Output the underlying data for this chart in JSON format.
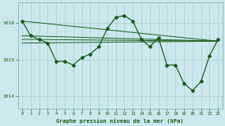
{
  "title": "Graphe pression niveau de la mer (hPa)",
  "background_color": "#cce8ee",
  "grid_color": "#aaccd4",
  "line_color": "#1a5c1a",
  "xlim": [
    -0.5,
    23.5
  ],
  "ylim": [
    1013.65,
    1016.55
  ],
  "yticks": [
    1014,
    1015,
    1016
  ],
  "xticks": [
    0,
    1,
    2,
    3,
    4,
    5,
    6,
    7,
    8,
    9,
    10,
    11,
    12,
    13,
    14,
    15,
    16,
    17,
    18,
    19,
    20,
    21,
    22,
    23
  ],
  "main_x": [
    0,
    1,
    2,
    3,
    4,
    5,
    6,
    7,
    8,
    9,
    10,
    11,
    12,
    13,
    14,
    15,
    16,
    17,
    18,
    19,
    20,
    21,
    22,
    23
  ],
  "main_y": [
    1016.05,
    1015.65,
    1015.55,
    1015.45,
    1014.95,
    1014.95,
    1014.85,
    1015.05,
    1015.15,
    1015.35,
    1015.85,
    1016.15,
    1016.2,
    1016.05,
    1015.55,
    1015.35,
    1015.6,
    1014.85,
    1014.85,
    1014.35,
    1014.15,
    1014.4,
    1015.1,
    1015.55
  ],
  "trend_lines": [
    {
      "x0": 0,
      "y0": 1016.05,
      "x1": 23,
      "y1": 1015.5
    },
    {
      "x0": 0,
      "y0": 1015.65,
      "x1": 23,
      "y1": 1015.5
    },
    {
      "x0": 0,
      "y0": 1015.55,
      "x1": 23,
      "y1": 1015.5
    },
    {
      "x0": 0,
      "y0": 1015.45,
      "x1": 23,
      "y1": 1015.5
    }
  ]
}
